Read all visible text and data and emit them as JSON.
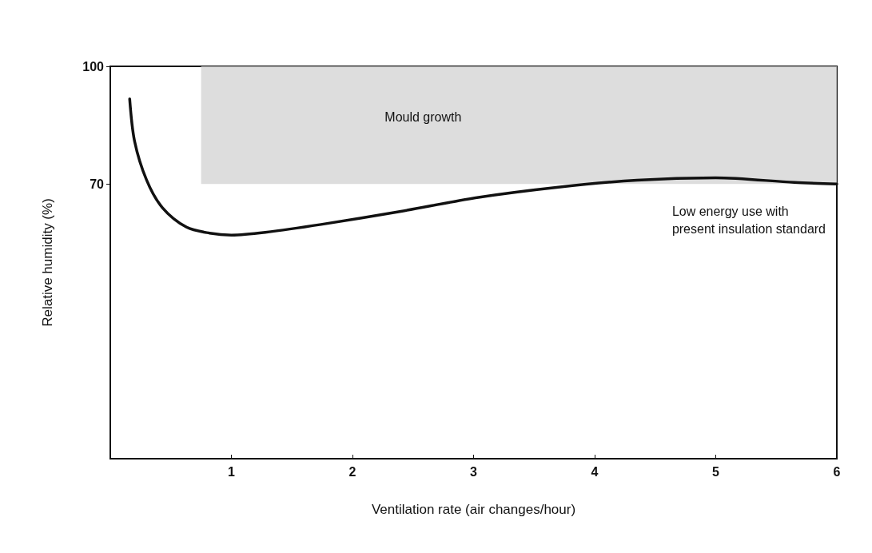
{
  "chart_data": {
    "type": "line",
    "xlabel": "Ventilation rate (air changes/hour)",
    "ylabel": "Relative humidity (%)",
    "xlim": [
      0,
      6
    ],
    "xticks": [
      1,
      2,
      3,
      4,
      5,
      6
    ],
    "ylim": [
      0,
      100
    ],
    "yticks": [
      70,
      100
    ],
    "grid": false,
    "marker": "none",
    "line_style": "solid",
    "series": [
      {
        "color": "#111111",
        "x": [
          0.16,
          0.2,
          0.3,
          0.43,
          0.63,
          0.82,
          1.0,
          1.28,
          1.74,
          2.39,
          3.04,
          3.7,
          4.35,
          5.0,
          5.65,
          6.0
        ],
        "values": [
          91.7,
          81,
          71,
          64,
          59,
          57.5,
          57,
          57.7,
          59.7,
          63,
          66.6,
          69.2,
          71,
          71.6,
          70.4,
          70
        ]
      }
    ],
    "bands": [
      {
        "axis": "y",
        "from": 70,
        "to": 100,
        "label": "Mould growth",
        "color": "#d4d4d4"
      }
    ],
    "annotations": [
      "Low energy use with\npresent insulation standard"
    ]
  }
}
